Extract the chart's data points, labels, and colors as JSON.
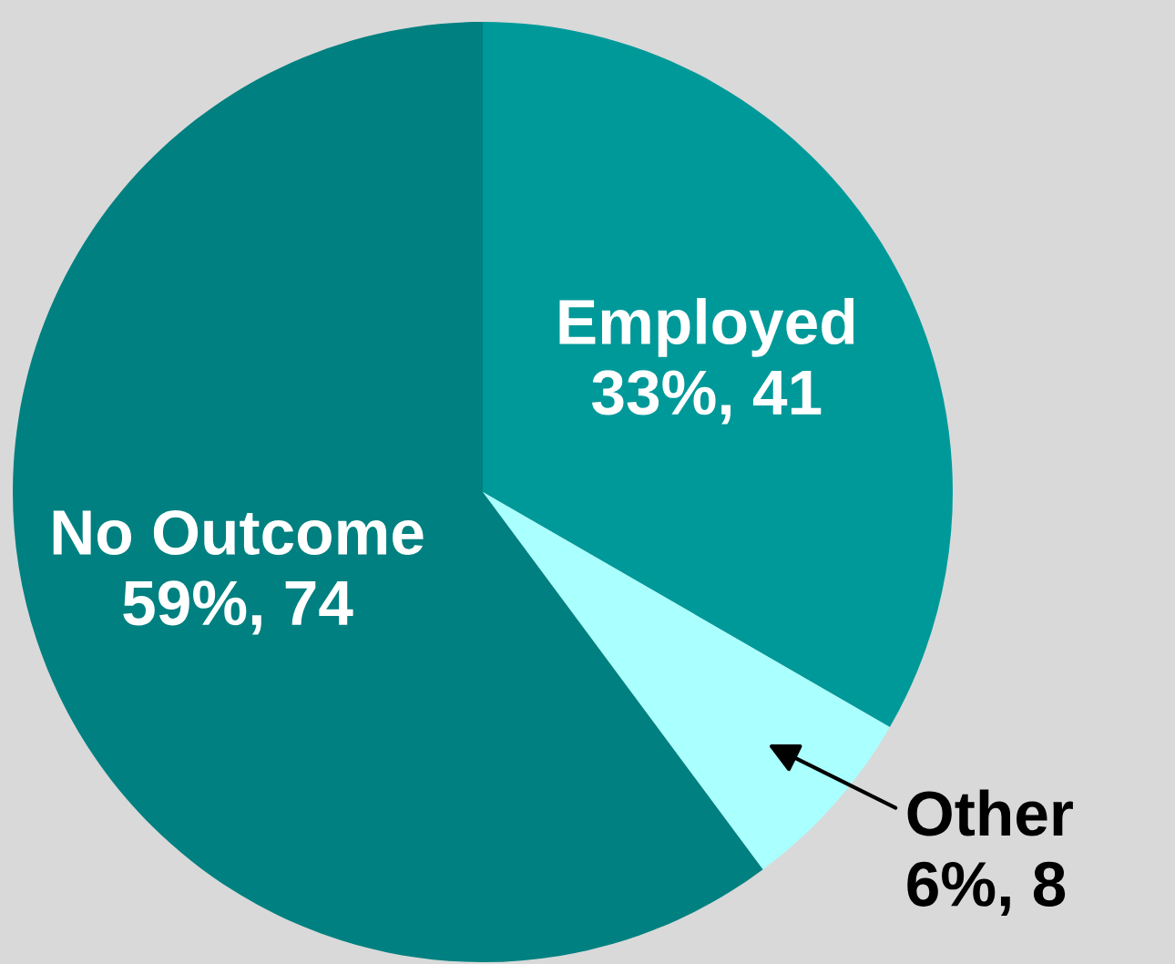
{
  "chart_data": {
    "type": "pie",
    "categories": [
      "Employed",
      "Other",
      "No Outcome"
    ],
    "values": [
      41,
      8,
      74
    ],
    "value_labels": [
      "33%, 41",
      "6%, 8",
      "59%, 74"
    ],
    "colors": [
      "#009999",
      "#aaffff",
      "#008080"
    ]
  }
}
